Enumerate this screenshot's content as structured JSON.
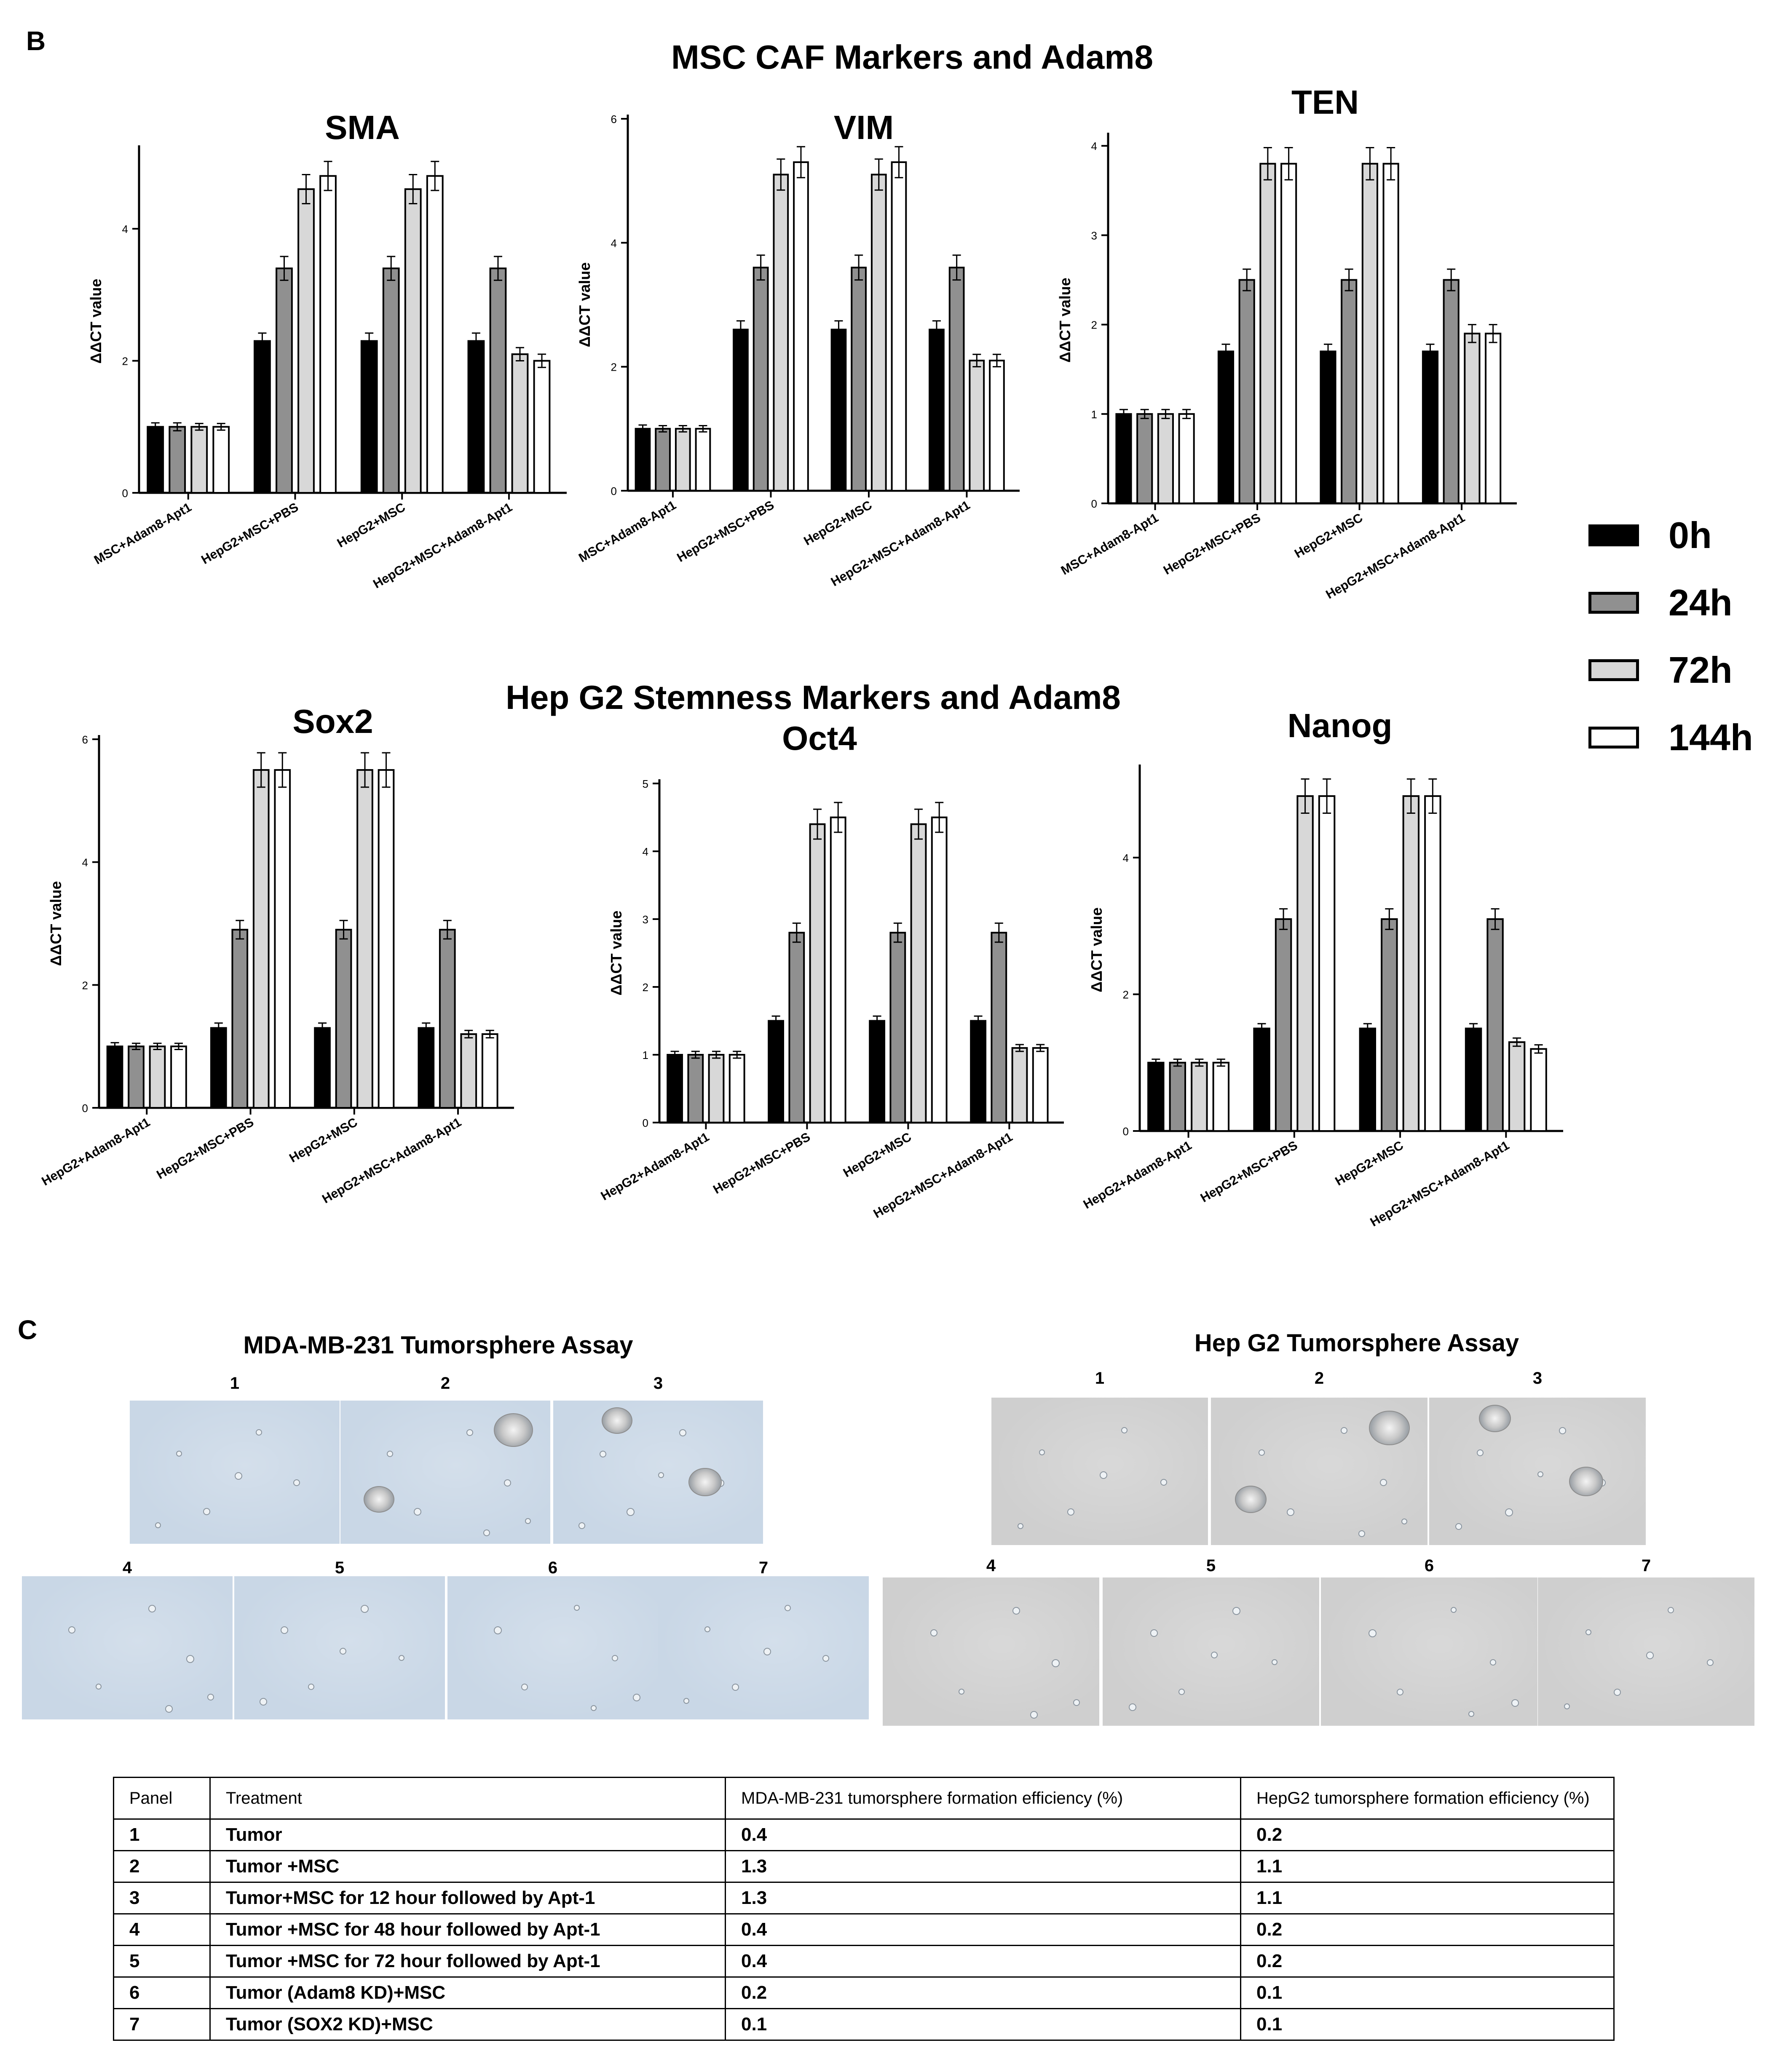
{
  "panel_b_label": "B",
  "panel_c_label": "C",
  "section_msc_title": "MSC CAF Markers and Adam8",
  "section_hep_title": "Hep G2 Stemness Markers and Adam8",
  "legend": [
    {
      "label": "0h",
      "color": "#000000"
    },
    {
      "label": "24h",
      "color": "#909090"
    },
    {
      "label": "72h",
      "color": "#d8d8d8"
    },
    {
      "label": "144h",
      "color": "#ffffff"
    }
  ],
  "chart_data": [
    {
      "type": "bar",
      "title": "SMA",
      "ylabel": "ΔΔCT value",
      "ylim": [
        0,
        5.2
      ],
      "yticks": [
        0,
        2,
        4
      ],
      "categories": [
        "MSC+Adam8-Apt1",
        "HepG2+MSC+PBS",
        "HepG2+MSC",
        "HepG2+MSC+Adam8-Apt1"
      ],
      "series": [
        {
          "name": "0h",
          "values": [
            1.0,
            2.3,
            2.3,
            2.3
          ],
          "errors": [
            0.06,
            0.12,
            0.12,
            0.12
          ]
        },
        {
          "name": "24h",
          "values": [
            1.0,
            3.4,
            3.4,
            3.4
          ],
          "errors": [
            0.06,
            0.18,
            0.18,
            0.18
          ]
        },
        {
          "name": "72h",
          "values": [
            1.0,
            4.6,
            4.6,
            2.1
          ],
          "errors": [
            0.05,
            0.22,
            0.22,
            0.1
          ]
        },
        {
          "name": "144h",
          "values": [
            1.0,
            4.8,
            4.8,
            2.0
          ],
          "errors": [
            0.05,
            0.22,
            0.22,
            0.1
          ]
        }
      ]
    },
    {
      "type": "bar",
      "title": "VIM",
      "ylabel": "ΔΔCT value",
      "ylim": [
        0,
        6
      ],
      "yticks": [
        0,
        2,
        4,
        6
      ],
      "categories": [
        "MSC+Adam8-Apt1",
        "HepG2+MSC+PBS",
        "HepG2+MSC",
        "HepG2+MSC+Adam8-Apt1"
      ],
      "series": [
        {
          "name": "0h",
          "values": [
            1.0,
            2.6,
            2.6,
            2.6
          ],
          "errors": [
            0.06,
            0.14,
            0.14,
            0.14
          ]
        },
        {
          "name": "24h",
          "values": [
            1.0,
            3.6,
            3.6,
            3.6
          ],
          "errors": [
            0.05,
            0.2,
            0.2,
            0.2
          ]
        },
        {
          "name": "72h",
          "values": [
            1.0,
            5.1,
            5.1,
            2.1
          ],
          "errors": [
            0.05,
            0.25,
            0.25,
            0.1
          ]
        },
        {
          "name": "144h",
          "values": [
            1.0,
            5.3,
            5.3,
            2.1
          ],
          "errors": [
            0.05,
            0.25,
            0.25,
            0.1
          ]
        }
      ]
    },
    {
      "type": "bar",
      "title": "TEN",
      "ylabel": "ΔΔCT value",
      "ylim": [
        0,
        4.1
      ],
      "yticks": [
        0,
        1,
        2,
        3,
        4
      ],
      "categories": [
        "MSC+Adam8-Apt1",
        "HepG2+MSC+PBS",
        "HepG2+MSC",
        "HepG2+MSC+Adam8-Apt1"
      ],
      "series": [
        {
          "name": "0h",
          "values": [
            1.0,
            1.7,
            1.7,
            1.7
          ],
          "errors": [
            0.05,
            0.08,
            0.08,
            0.08
          ]
        },
        {
          "name": "24h",
          "values": [
            1.0,
            2.5,
            2.5,
            2.5
          ],
          "errors": [
            0.05,
            0.12,
            0.12,
            0.12
          ]
        },
        {
          "name": "72h",
          "values": [
            1.0,
            3.8,
            3.8,
            1.9
          ],
          "errors": [
            0.05,
            0.18,
            0.18,
            0.1
          ]
        },
        {
          "name": "144h",
          "values": [
            1.0,
            3.8,
            3.8,
            1.9
          ],
          "errors": [
            0.05,
            0.18,
            0.18,
            0.1
          ]
        }
      ]
    },
    {
      "type": "bar",
      "title": "Sox2",
      "ylabel": "ΔΔCT value",
      "ylim": [
        0,
        6
      ],
      "yticks": [
        0,
        2,
        4,
        6
      ],
      "categories": [
        "HepG2+Adam8-Apt1",
        "HepG2+MSC+PBS",
        "HepG2+MSC",
        "HepG2+MSC+Adam8-Apt1"
      ],
      "series": [
        {
          "name": "0h",
          "values": [
            1.0,
            1.3,
            1.3,
            1.3
          ],
          "errors": [
            0.06,
            0.08,
            0.08,
            0.08
          ]
        },
        {
          "name": "24h",
          "values": [
            1.0,
            2.9,
            2.9,
            2.9
          ],
          "errors": [
            0.05,
            0.15,
            0.15,
            0.15
          ]
        },
        {
          "name": "72h",
          "values": [
            1.0,
            5.5,
            5.5,
            1.2
          ],
          "errors": [
            0.05,
            0.28,
            0.28,
            0.06
          ]
        },
        {
          "name": "144h",
          "values": [
            1.0,
            5.5,
            5.5,
            1.2
          ],
          "errors": [
            0.05,
            0.28,
            0.28,
            0.06
          ]
        }
      ]
    },
    {
      "type": "bar",
      "title": "Oct4",
      "ylabel": "ΔΔCT value",
      "ylim": [
        0,
        5
      ],
      "yticks": [
        0,
        1,
        2,
        3,
        4,
        5
      ],
      "categories": [
        "HepG2+Adam8-Apt1",
        "HepG2+MSC+PBS",
        "HepG2+MSC",
        "HepG2+MSC+Adam8-Apt1"
      ],
      "series": [
        {
          "name": "0h",
          "values": [
            1.0,
            1.5,
            1.5,
            1.5
          ],
          "errors": [
            0.05,
            0.07,
            0.07,
            0.07
          ]
        },
        {
          "name": "24h",
          "values": [
            1.0,
            2.8,
            2.8,
            2.8
          ],
          "errors": [
            0.05,
            0.14,
            0.14,
            0.14
          ]
        },
        {
          "name": "72h",
          "values": [
            1.0,
            4.4,
            4.4,
            1.1
          ],
          "errors": [
            0.05,
            0.22,
            0.22,
            0.05
          ]
        },
        {
          "name": "144h",
          "values": [
            1.0,
            4.5,
            4.5,
            1.1
          ],
          "errors": [
            0.05,
            0.22,
            0.22,
            0.05
          ]
        }
      ]
    },
    {
      "type": "bar",
      "title": "Nanog",
      "ylabel": "ΔΔCT value",
      "ylim": [
        0,
        5.3
      ],
      "yticks": [
        0,
        2,
        4
      ],
      "categories": [
        "HepG2+Adam8-Apt1",
        "HepG2+MSC+PBS",
        "HepG2+MSC",
        "HepG2+MSC+Adam8-Apt1"
      ],
      "series": [
        {
          "name": "0h",
          "values": [
            1.0,
            1.5,
            1.5,
            1.5
          ],
          "errors": [
            0.05,
            0.07,
            0.07,
            0.07
          ]
        },
        {
          "name": "24h",
          "values": [
            1.0,
            3.1,
            3.1,
            3.1
          ],
          "errors": [
            0.05,
            0.15,
            0.15,
            0.15
          ]
        },
        {
          "name": "72h",
          "values": [
            1.0,
            4.9,
            4.9,
            1.3
          ],
          "errors": [
            0.05,
            0.25,
            0.25,
            0.06
          ]
        },
        {
          "name": "144h",
          "values": [
            1.0,
            4.9,
            4.9,
            1.2
          ],
          "errors": [
            0.05,
            0.25,
            0.25,
            0.06
          ]
        }
      ]
    }
  ],
  "assays": [
    {
      "title": "MDA-MB-231 Tumorsphere Assay",
      "tint": "#c9d7e6",
      "photos": [
        {
          "number": "1",
          "spheres": 0
        },
        {
          "number": "2",
          "spheres": 2
        },
        {
          "number": "3",
          "spheres": 2
        },
        {
          "number": "4",
          "spheres": 0
        },
        {
          "number": "5",
          "spheres": 0
        },
        {
          "number": "6",
          "spheres": 0
        },
        {
          "number": "7",
          "spheres": 0
        }
      ]
    },
    {
      "title": "Hep G2 Tumorsphere Assay",
      "tint": "#cfcfcf",
      "photos": [
        {
          "number": "1",
          "spheres": 0
        },
        {
          "number": "2",
          "spheres": 2
        },
        {
          "number": "3",
          "spheres": 2
        },
        {
          "number": "4",
          "spheres": 0
        },
        {
          "number": "5",
          "spheres": 0
        },
        {
          "number": "6",
          "spheres": 0
        },
        {
          "number": "7",
          "spheres": 0
        }
      ]
    }
  ],
  "table": {
    "headers": [
      "Panel",
      "Treatment",
      "MDA-MB-231 tumorsphere formation efficiency (%)",
      "HepG2 tumorsphere formation efficiency (%)"
    ],
    "rows": [
      [
        "1",
        "Tumor",
        "0.4",
        "0.2"
      ],
      [
        "2",
        "Tumor +MSC",
        "1.3",
        "1.1"
      ],
      [
        "3",
        "Tumor+MSC for 12 hour followed by Apt-1",
        "1.3",
        "1.1"
      ],
      [
        "4",
        "Tumor +MSC for 48 hour followed by Apt-1",
        "0.4",
        "0.2"
      ],
      [
        "5",
        "Tumor +MSC for 72 hour followed by Apt-1",
        "0.4",
        "0.2"
      ],
      [
        "6",
        "Tumor (Adam8 KD)+MSC",
        "0.2",
        "0.1"
      ],
      [
        "7",
        "Tumor (SOX2 KD)+MSC",
        "0.1",
        "0.1"
      ]
    ]
  }
}
